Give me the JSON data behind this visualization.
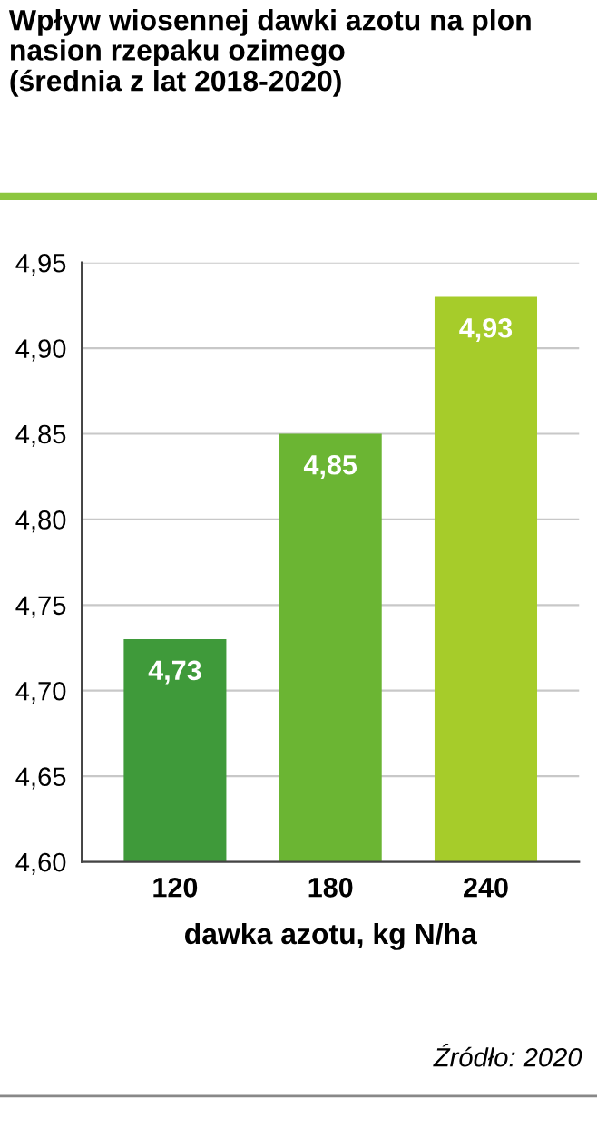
{
  "chart_data": {
    "type": "bar",
    "title": "Wpływ wiosennej dawki azotu na plon\nnasion rzepaku ozimego\n(średnia z lat 2018-2020)",
    "xlabel": "dawka azotu, kg N/ha",
    "categories": [
      "120",
      "180",
      "240"
    ],
    "values": [
      4.73,
      4.85,
      4.93
    ],
    "value_labels": [
      "4,73",
      "4,85",
      "4,93"
    ],
    "colors": [
      "#3f9a3a",
      "#6bb533",
      "#a6cc2a"
    ],
    "ylim": [
      4.6,
      4.95
    ],
    "yticks": [
      {
        "value": 4.6,
        "label": "4,60"
      },
      {
        "value": 4.65,
        "label": "4,65"
      },
      {
        "value": 4.7,
        "label": "4,70"
      },
      {
        "value": 4.75,
        "label": "4,75"
      },
      {
        "value": 4.8,
        "label": "4,80"
      },
      {
        "value": 4.85,
        "label": "4,85"
      },
      {
        "value": 4.9,
        "label": "4,90"
      },
      {
        "value": 4.95,
        "label": "4,95"
      }
    ],
    "grid": "y",
    "annotations": [
      "Źródło: 2020"
    ]
  }
}
